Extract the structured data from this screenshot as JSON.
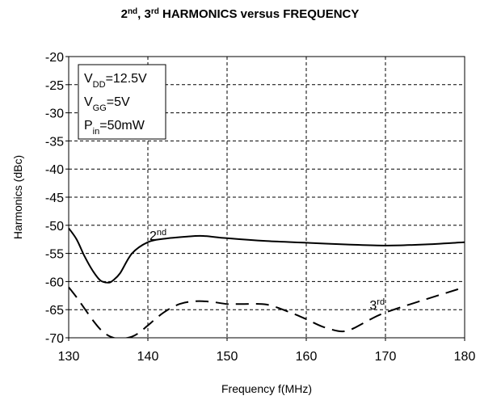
{
  "chart_data": {
    "type": "line",
    "title": {
      "parts": [
        {
          "text": "2",
          "sup": false
        },
        {
          "text": "nd",
          "sup": true
        },
        {
          "text": ", 3",
          "sup": false
        },
        {
          "text": "rd",
          "sup": true
        },
        {
          "text": " HARMONICS  versus FREQUENCY",
          "sup": false
        }
      ]
    },
    "xlabel": "Frequency f(MHz)",
    "ylabel": "Harmonics (dBc)",
    "xlim": [
      130,
      180
    ],
    "ylim": [
      -70,
      -20
    ],
    "xticks": [
      130,
      140,
      150,
      160,
      170,
      180
    ],
    "yticks": [
      -20,
      -25,
      -30,
      -35,
      -40,
      -45,
      -50,
      -55,
      -60,
      -65,
      -70
    ],
    "grid": true,
    "grid_style": "dashed",
    "conditions": [
      {
        "base": "V",
        "sub": "DD",
        "rest": "=12.5V"
      },
      {
        "base": "V",
        "sub": "GG",
        "rest": "=5V"
      },
      {
        "base": "P",
        "sub": "in",
        "rest": "=50mW"
      }
    ],
    "series": [
      {
        "label": {
          "base": "2",
          "sup": "nd"
        },
        "line_style": "solid",
        "color": "#000000",
        "x": [
          130,
          131,
          132,
          133,
          134,
          135,
          135.6,
          136.5,
          138,
          140,
          142,
          145,
          147,
          150,
          155,
          160,
          165,
          170,
          175,
          180
        ],
        "y": [
          -50.5,
          -52.5,
          -55.5,
          -58,
          -59.8,
          -60.2,
          -59.8,
          -58.5,
          -55,
          -53,
          -52.4,
          -52,
          -51.9,
          -52.3,
          -52.8,
          -53.1,
          -53.4,
          -53.6,
          -53.4,
          -53
        ]
      },
      {
        "label": {
          "base": "3",
          "sup": "rd"
        },
        "line_style": "dashed",
        "color": "#000000",
        "x": [
          130,
          131,
          132,
          133,
          134,
          135,
          136,
          137,
          138,
          139,
          140,
          142,
          144,
          146,
          148,
          150,
          152,
          155,
          158,
          160,
          162,
          164,
          165,
          166,
          168,
          170,
          175,
          180
        ],
        "y": [
          -61,
          -62.8,
          -64.8,
          -66.8,
          -68.5,
          -69.6,
          -70.1,
          -70.1,
          -69.8,
          -69,
          -67.8,
          -65.5,
          -64,
          -63.5,
          -63.6,
          -64,
          -64,
          -64.1,
          -65.5,
          -66.7,
          -68,
          -68.8,
          -68.8,
          -68.3,
          -66.8,
          -65.5,
          -63.2,
          -61
        ]
      }
    ],
    "annotations": [
      {
        "for_series": 0,
        "x": 140.2,
        "y": -52.6
      },
      {
        "for_series": 1,
        "x": 168,
        "y": -65
      }
    ]
  }
}
